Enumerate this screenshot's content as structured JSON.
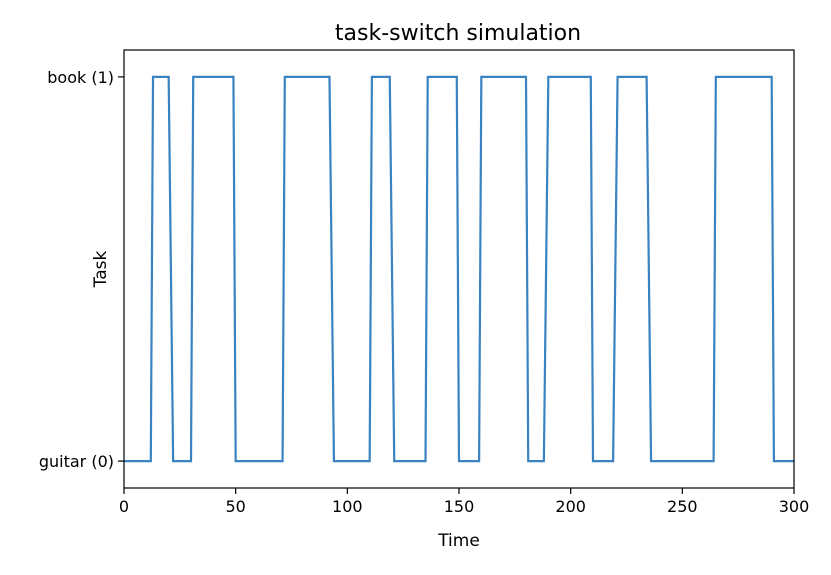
{
  "chart_data": {
    "type": "line",
    "title": "task-switch simulation",
    "xlabel": "Time",
    "ylabel": "Task",
    "xlim": [
      0,
      300
    ],
    "ylim": [
      -0.07,
      1.07
    ],
    "grid": false,
    "legend": "none",
    "line_color": "#3a83c2",
    "x_ticks": [
      {
        "value": 0,
        "label": "0"
      },
      {
        "value": 50,
        "label": "50"
      },
      {
        "value": 100,
        "label": "100"
      },
      {
        "value": 150,
        "label": "150"
      },
      {
        "value": 200,
        "label": "200"
      },
      {
        "value": 250,
        "label": "250"
      },
      {
        "value": 300,
        "label": "300"
      }
    ],
    "y_ticks": [
      {
        "value": 0,
        "label": "guitar (0)"
      },
      {
        "value": 1,
        "label": "book (1)"
      }
    ],
    "series": [
      {
        "x": [
          0,
          12,
          13,
          20,
          22,
          30,
          31,
          49,
          50,
          71,
          72,
          92,
          94,
          110,
          111,
          119,
          121,
          135,
          136,
          149,
          150,
          159,
          160,
          180,
          181,
          188,
          190,
          209,
          210,
          219,
          221,
          234,
          236,
          264,
          265,
          290,
          291,
          300
        ],
        "y": [
          0,
          0,
          1,
          1,
          0,
          0,
          1,
          1,
          0,
          0,
          1,
          1,
          0,
          0,
          1,
          1,
          0,
          0,
          1,
          1,
          0,
          0,
          1,
          1,
          0,
          0,
          1,
          1,
          0,
          0,
          1,
          1,
          0,
          0,
          1,
          1,
          0,
          0
        ]
      }
    ]
  }
}
